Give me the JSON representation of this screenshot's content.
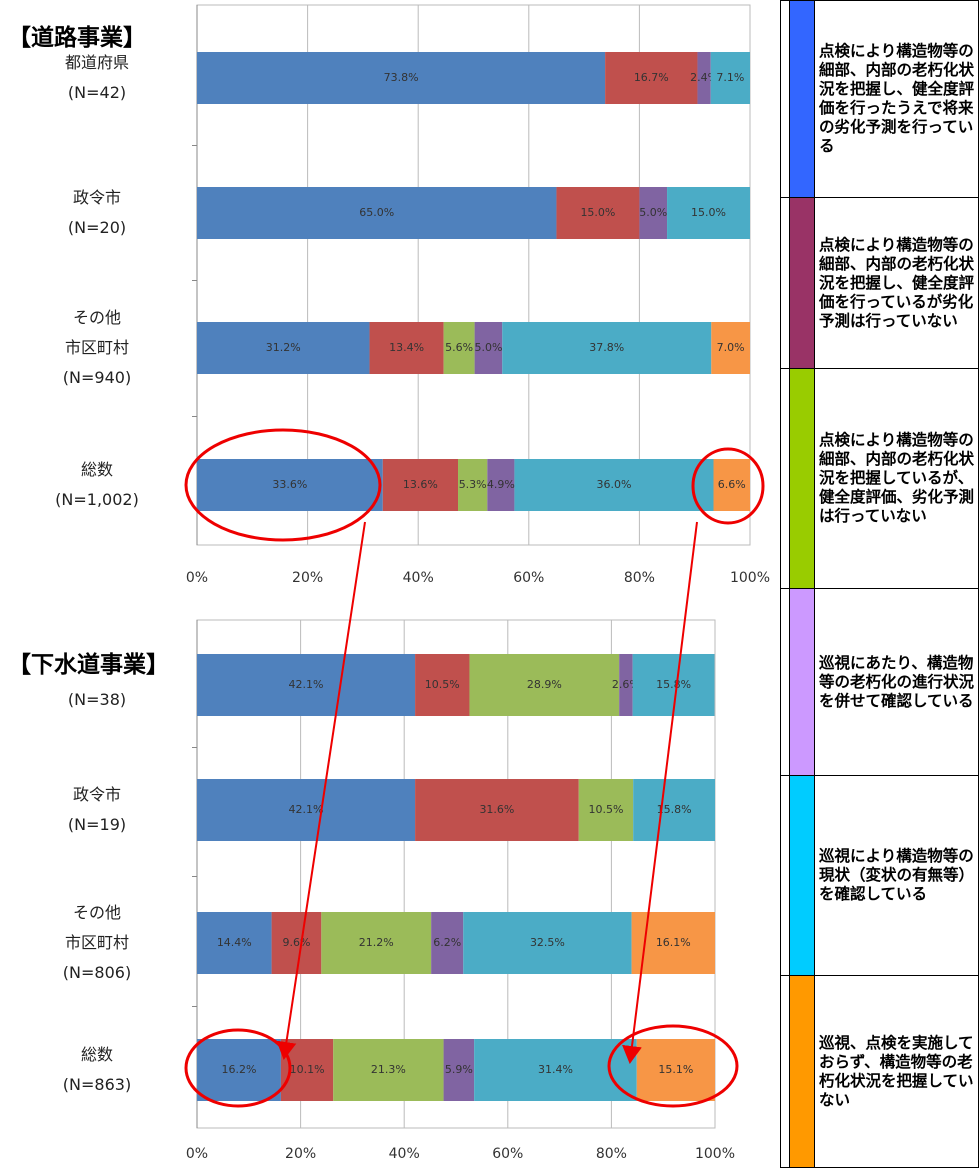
{
  "chart_data": [
    {
      "type": "stacked-barh",
      "title": "【道路事業】",
      "categories": [
        "都道府県\n(N=42)",
        "政令市\n(N=20)",
        "その他\n市区町村\n(N=940)",
        "総数\n(N=1,002)"
      ],
      "xlim": [
        0,
        100
      ],
      "xticks": [
        {
          "value": 0,
          "label": "0%"
        },
        {
          "value": 20,
          "label": "20%"
        },
        {
          "value": 40,
          "label": "40%"
        },
        {
          "value": 60,
          "label": "60%"
        },
        {
          "value": 80,
          "label": "80%"
        },
        {
          "value": 100,
          "label": "100%"
        }
      ],
      "grid": true,
      "series": [
        {
          "name": "点検により構造物等の細部、内部の老朽化状況を把握し、健全度評価を行ったうえで将来の劣化予測を行っている",
          "color": "#4f81bd",
          "legend_color": "#3366ff",
          "values": [
            73.8,
            65.0,
            31.2,
            33.6
          ],
          "value_labels": [
            "73.8%",
            "65.0%",
            "31.2%",
            "33.6%"
          ]
        },
        {
          "name": "点検により構造物等の細部、内部の老朽化状況を把握し、健全度評価を行っているが劣化予測は行っていない",
          "color": "#c0504d",
          "legend_color": "#993366",
          "values": [
            16.7,
            15.0,
            13.4,
            13.6
          ],
          "value_labels": [
            "16.7%",
            "15.0%",
            "13.4%",
            "13.6%"
          ]
        },
        {
          "name": "点検により構造物等の細部、内部の老朽化状況を把握しているが、健全度評価、劣化予測は行っていない",
          "color": "#9bbb59",
          "legend_color": "#99cc00",
          "values": [
            null,
            null,
            5.6,
            5.3
          ],
          "value_labels": [
            null,
            null,
            "5.6%",
            "5.3%"
          ]
        },
        {
          "name": "巡視にあたり、構造物等の老朽化の進行状況を併せて確認している",
          "color": "#8064a2",
          "legend_color": "#cc99ff",
          "values": [
            2.4,
            5.0,
            5.0,
            4.9
          ],
          "value_labels": [
            "2.4%",
            "5.0%",
            "5.0%",
            "4.9%"
          ]
        },
        {
          "name": "巡視により構造物等の現状（変状の有無等）を確認している",
          "color": "#4bacc6",
          "legend_color": "#00ccff",
          "values": [
            7.1,
            15.0,
            37.8,
            36.0
          ],
          "value_labels": [
            "7.1%",
            "15.0%",
            "37.8%",
            "36.0%"
          ]
        },
        {
          "name": "巡視、点検を実施しておらず、構造物等の老朽化状況を把握していない",
          "color": "#f79646",
          "legend_color": "#ff9900",
          "values": [
            null,
            null,
            7.0,
            6.6
          ],
          "value_labels": [
            null,
            null,
            "7.0%",
            "6.6%"
          ]
        }
      ]
    },
    {
      "type": "stacked-barh",
      "title": "【下水道事業】",
      "categories": [
        "都道府県\n(N=38)",
        "政令市\n(N=19)",
        "その他\n市区町村\n(N=806)",
        "総数\n(N=863)"
      ],
      "xlim": [
        0,
        100
      ],
      "xticks": [
        {
          "value": 0,
          "label": "0%"
        },
        {
          "value": 20,
          "label": "20%"
        },
        {
          "value": 40,
          "label": "40%"
        },
        {
          "value": 60,
          "label": "60%"
        },
        {
          "value": 80,
          "label": "80%"
        },
        {
          "value": 100,
          "label": "100%"
        }
      ],
      "grid": true,
      "series": [
        {
          "color": "#4f81bd",
          "values": [
            42.1,
            42.1,
            14.4,
            16.2
          ],
          "value_labels": [
            "42.1%",
            "42.1%",
            "14.4%",
            "16.2%"
          ]
        },
        {
          "color": "#c0504d",
          "values": [
            10.5,
            31.6,
            9.6,
            10.1
          ],
          "value_labels": [
            "10.5%",
            "31.6%",
            "9.6%",
            "10.1%"
          ]
        },
        {
          "color": "#9bbb59",
          "values": [
            28.9,
            10.5,
            21.2,
            21.3
          ],
          "value_labels": [
            "28.9%",
            "10.5%",
            "21.2%",
            "21.3%"
          ]
        },
        {
          "color": "#8064a2",
          "values": [
            2.6,
            null,
            6.2,
            5.9
          ],
          "value_labels": [
            "2.6%",
            null,
            "6.2%",
            "5.9%"
          ]
        },
        {
          "color": "#4bacc6",
          "values": [
            15.8,
            15.8,
            32.5,
            31.4
          ],
          "value_labels": [
            "15.8%",
            "15.8%",
            "32.5%",
            "31.4%"
          ]
        },
        {
          "color": "#f79646",
          "values": [
            null,
            null,
            16.1,
            15.1
          ],
          "value_labels": [
            null,
            null,
            "16.1%",
            "15.1%"
          ]
        }
      ]
    }
  ]
}
